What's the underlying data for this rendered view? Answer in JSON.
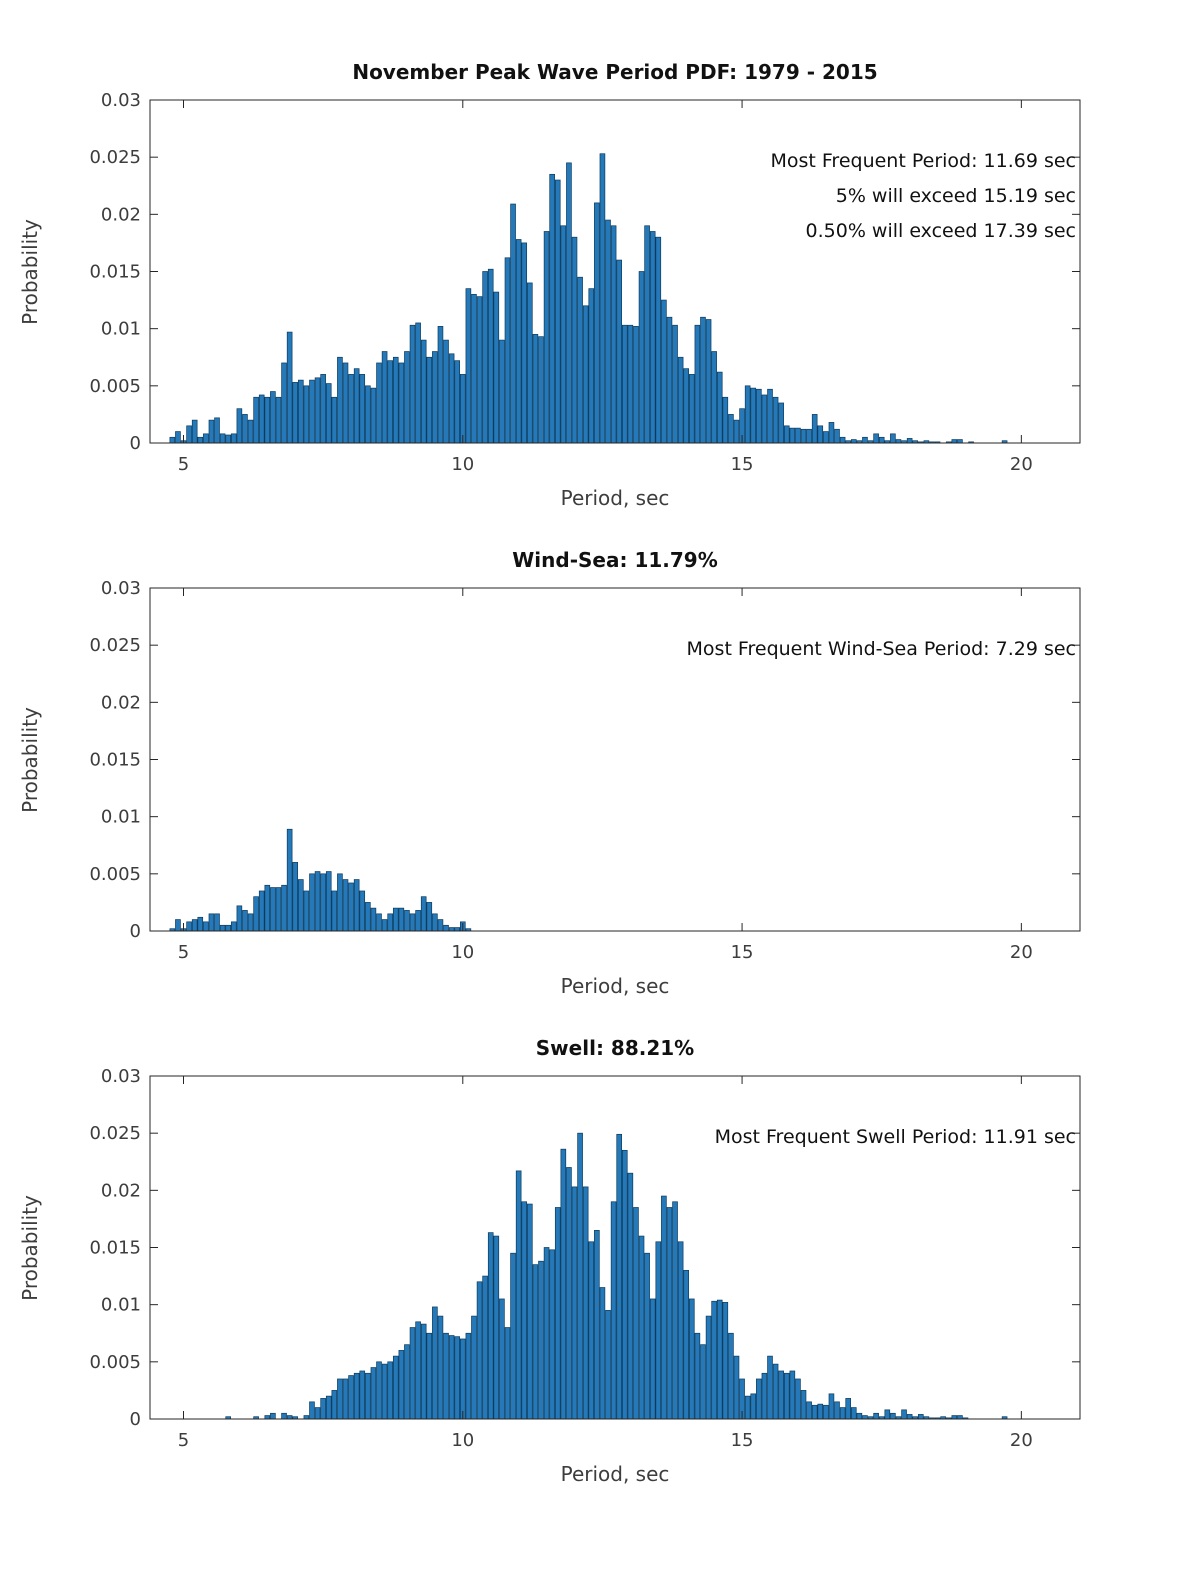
{
  "chart_data": [
    {
      "type": "bar",
      "title": "November Peak Wave Period PDF: 1979 - 2015",
      "xlabel": "Period, sec",
      "ylabel": "Probability",
      "annotations": [
        "Most Frequent Period: 11.69 sec",
        "5% will exceed 15.19 sec",
        "0.50% will exceed 17.39 sec"
      ],
      "xlim": [
        4.4,
        21.05
      ],
      "ylim": [
        0,
        0.03
      ],
      "xticks": [
        5,
        10,
        15,
        20
      ],
      "yticks": [
        0,
        0.005,
        0.01,
        0.015,
        0.02,
        0.025,
        0.03
      ],
      "grid": false,
      "bar_color": "#2679b8",
      "bar_edge_color": "#0b3a5c",
      "axis_color": "#262626",
      "x_start": 4.75,
      "bin_width": 0.1,
      "values": [
        0.0005,
        0.001,
        0.0002,
        0.0015,
        0.002,
        0.0005,
        0.0008,
        0.002,
        0.0022,
        0.0008,
        0.0007,
        0.0008,
        0.003,
        0.0025,
        0.002,
        0.004,
        0.0042,
        0.004,
        0.0045,
        0.004,
        0.007,
        0.0097,
        0.0053,
        0.0055,
        0.005,
        0.0055,
        0.0057,
        0.006,
        0.0052,
        0.004,
        0.0075,
        0.007,
        0.006,
        0.0065,
        0.006,
        0.005,
        0.0048,
        0.007,
        0.008,
        0.0072,
        0.0075,
        0.007,
        0.008,
        0.0103,
        0.0105,
        0.009,
        0.0075,
        0.008,
        0.0102,
        0.009,
        0.0078,
        0.0072,
        0.006,
        0.0135,
        0.013,
        0.0128,
        0.015,
        0.0152,
        0.0132,
        0.009,
        0.0162,
        0.0209,
        0.0178,
        0.0175,
        0.014,
        0.0095,
        0.0093,
        0.0185,
        0.0235,
        0.023,
        0.019,
        0.0245,
        0.018,
        0.0145,
        0.012,
        0.0135,
        0.021,
        0.0253,
        0.0195,
        0.019,
        0.016,
        0.0103,
        0.0103,
        0.0102,
        0.015,
        0.019,
        0.0185,
        0.018,
        0.0125,
        0.011,
        0.0103,
        0.0075,
        0.0065,
        0.006,
        0.0103,
        0.011,
        0.0108,
        0.008,
        0.0062,
        0.004,
        0.0025,
        0.002,
        0.003,
        0.005,
        0.0048,
        0.0047,
        0.0042,
        0.0047,
        0.004,
        0.0035,
        0.0015,
        0.0013,
        0.0013,
        0.0012,
        0.0012,
        0.0025,
        0.0015,
        0.001,
        0.0018,
        0.0012,
        0.0005,
        0.0002,
        0.0003,
        0.0002,
        0.0005,
        0.0002,
        0.0008,
        0.0005,
        0.0002,
        0.0008,
        0.0003,
        0.0002,
        0.0004,
        0.0002,
        0.0001,
        0.0002,
        0.0001,
        0.0001,
        0,
        0.0001,
        0.0003,
        0.0003,
        0,
        0.0001,
        0,
        0,
        0,
        0,
        0,
        0.0002
      ]
    },
    {
      "type": "bar",
      "title": "Wind-Sea: 11.79%",
      "xlabel": "Period, sec",
      "ylabel": "Probability",
      "annotations": [
        "Most Frequent Wind-Sea Period: 7.29 sec"
      ],
      "xlim": [
        4.4,
        21.05
      ],
      "ylim": [
        0,
        0.03
      ],
      "xticks": [
        5,
        10,
        15,
        20
      ],
      "yticks": [
        0,
        0.005,
        0.01,
        0.015,
        0.02,
        0.025,
        0.03
      ],
      "grid": false,
      "bar_color": "#2679b8",
      "bar_edge_color": "#0b3a5c",
      "axis_color": "#262626",
      "x_start": 4.75,
      "bin_width": 0.1,
      "values": [
        0.0002,
        0.001,
        0.0002,
        0.0008,
        0.001,
        0.0012,
        0.0008,
        0.0015,
        0.0015,
        0.0005,
        0.0005,
        0.0008,
        0.0022,
        0.0018,
        0.0015,
        0.003,
        0.0035,
        0.004,
        0.0038,
        0.0038,
        0.004,
        0.0089,
        0.006,
        0.0045,
        0.0035,
        0.005,
        0.0052,
        0.005,
        0.0052,
        0.0035,
        0.005,
        0.0045,
        0.0042,
        0.0045,
        0.0035,
        0.0025,
        0.002,
        0.0015,
        0.001,
        0.0015,
        0.002,
        0.002,
        0.0018,
        0.0015,
        0.0018,
        0.003,
        0.0025,
        0.0015,
        0.001,
        0.0005,
        0.0003,
        0.0003,
        0.0008,
        0.0002
      ]
    },
    {
      "type": "bar",
      "title": "Swell: 88.21%",
      "xlabel": "Period, sec",
      "ylabel": "Probability",
      "annotations": [
        "Most Frequent Swell Period: 11.91 sec"
      ],
      "xlim": [
        4.4,
        21.05
      ],
      "ylim": [
        0,
        0.03
      ],
      "xticks": [
        5,
        10,
        15,
        20
      ],
      "yticks": [
        0,
        0.005,
        0.01,
        0.015,
        0.02,
        0.025,
        0.03
      ],
      "grid": false,
      "bar_color": "#2679b8",
      "bar_edge_color": "#0b3a5c",
      "axis_color": "#262626",
      "x_start": 5.75,
      "bin_width": 0.1,
      "values": [
        0.0002,
        0,
        0,
        0,
        0,
        0.0002,
        0,
        0.0003,
        0.0005,
        0,
        0.0005,
        0.0003,
        0.0002,
        0,
        0.0003,
        0.0015,
        0.001,
        0.0018,
        0.002,
        0.0025,
        0.0035,
        0.0035,
        0.0038,
        0.004,
        0.0042,
        0.004,
        0.0045,
        0.005,
        0.0048,
        0.005,
        0.0055,
        0.006,
        0.0065,
        0.008,
        0.0085,
        0.0083,
        0.0075,
        0.0098,
        0.009,
        0.0075,
        0.0073,
        0.0072,
        0.007,
        0.0075,
        0.009,
        0.012,
        0.0125,
        0.0163,
        0.016,
        0.0105,
        0.008,
        0.0145,
        0.0217,
        0.019,
        0.0188,
        0.0135,
        0.0138,
        0.015,
        0.0148,
        0.0185,
        0.0236,
        0.022,
        0.0203,
        0.025,
        0.0203,
        0.0155,
        0.0165,
        0.0115,
        0.0095,
        0.019,
        0.0249,
        0.0235,
        0.0215,
        0.0185,
        0.016,
        0.0145,
        0.0105,
        0.0155,
        0.0195,
        0.0185,
        0.019,
        0.0155,
        0.013,
        0.0105,
        0.0075,
        0.0065,
        0.009,
        0.0103,
        0.0104,
        0.0102,
        0.0075,
        0.0055,
        0.0035,
        0.002,
        0.0022,
        0.0035,
        0.004,
        0.0055,
        0.0048,
        0.0042,
        0.004,
        0.0042,
        0.0035,
        0.0025,
        0.0015,
        0.0012,
        0.0013,
        0.0012,
        0.0022,
        0.0015,
        0.001,
        0.0018,
        0.001,
        0.0005,
        0.0003,
        0.0002,
        0.0005,
        0.0002,
        0.0008,
        0.0005,
        0.0002,
        0.0008,
        0.0004,
        0.0002,
        0.0004,
        0.0002,
        0.0001,
        0.0001,
        0.0002,
        0.0001,
        0.0003,
        0.0003,
        0.0001,
        0,
        0,
        0,
        0,
        0,
        0,
        0.0002
      ]
    }
  ]
}
